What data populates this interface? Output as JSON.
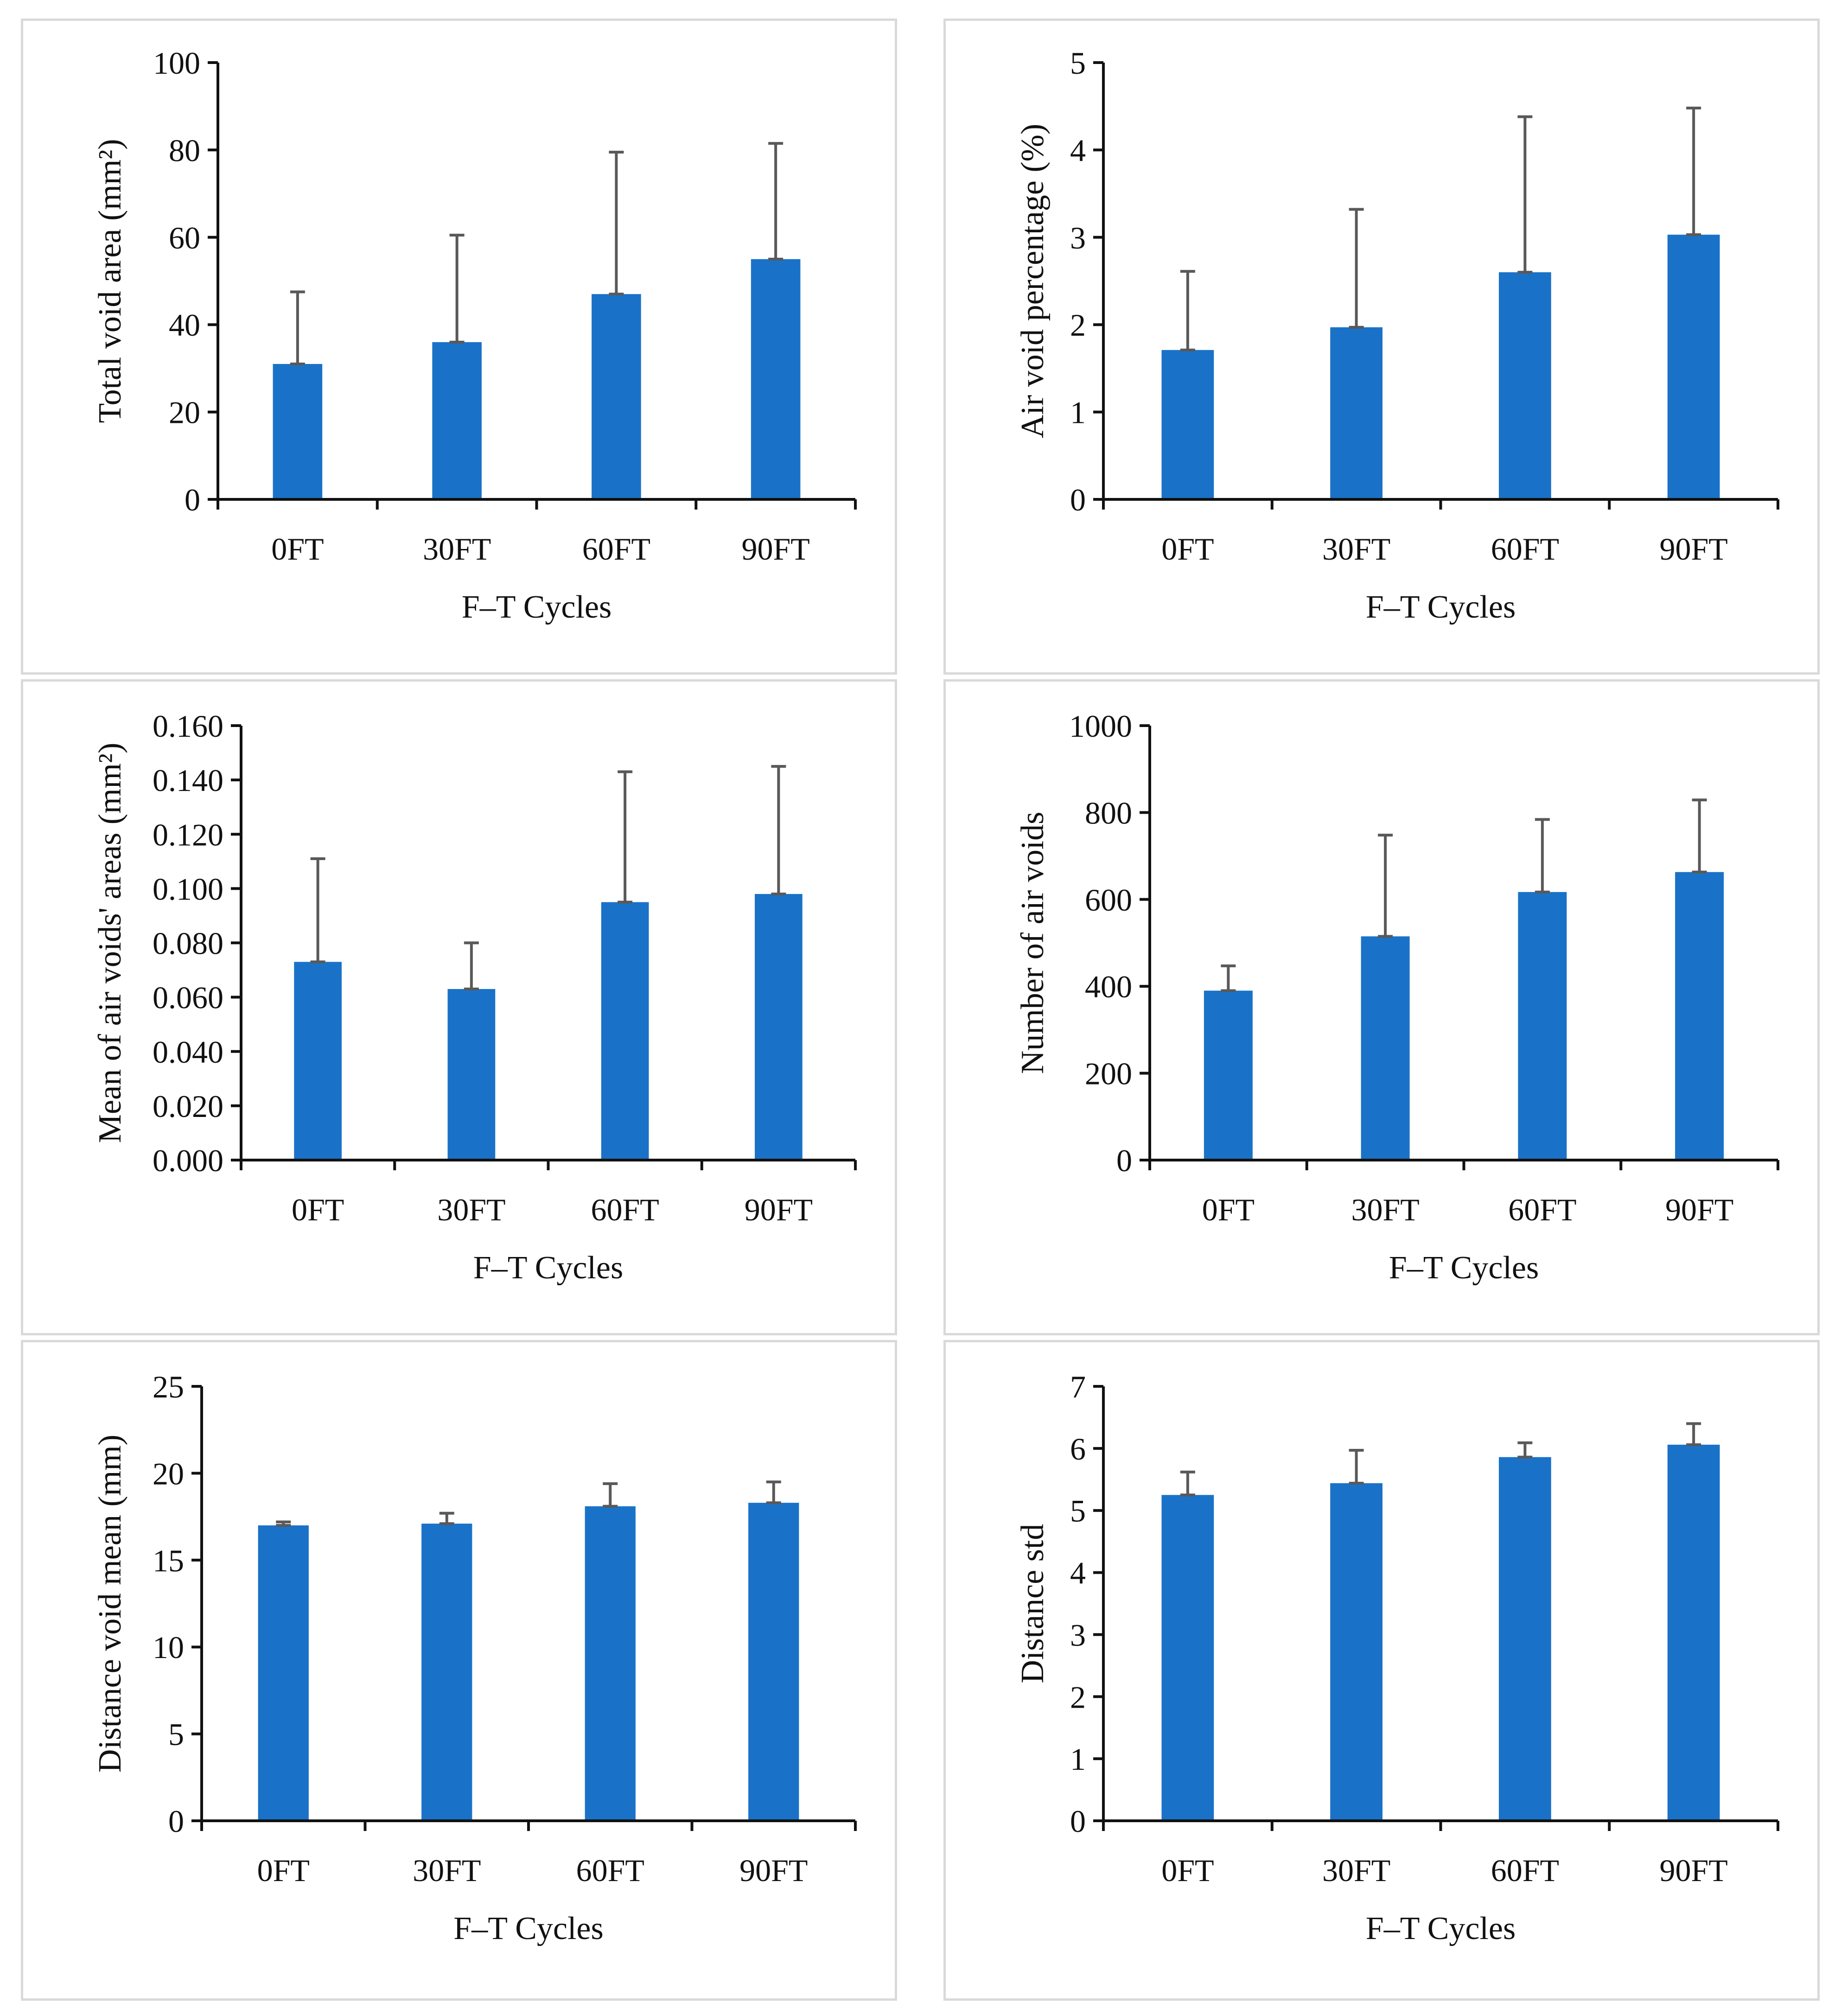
{
  "colors": {
    "bar": "#1a72c8",
    "error_bar": "#595959",
    "axis": "#111111",
    "panel_border": "#d9d9d9"
  },
  "chart_data": [
    {
      "type": "bar",
      "categories": [
        "0FT",
        "30FT",
        "60FT",
        "90FT"
      ],
      "values": [
        31,
        36,
        47,
        55
      ],
      "errors": [
        16.5,
        24.5,
        32.5,
        26.5
      ],
      "title": "",
      "xlabel": "F–T Cycles",
      "ylabel": "Total void area (mm²)",
      "ylim": [
        0,
        100
      ],
      "yticks": [
        "0",
        "20",
        "40",
        "60",
        "80",
        "100"
      ],
      "grid": false
    },
    {
      "type": "bar",
      "categories": [
        "0FT",
        "30FT",
        "60FT",
        "90FT"
      ],
      "values": [
        1.71,
        1.97,
        2.6,
        3.03
      ],
      "errors": [
        0.9,
        1.35,
        1.78,
        1.45
      ],
      "title": "",
      "xlabel": "F–T Cycles",
      "ylabel": "Air void percentage (%)",
      "ylim": [
        0,
        5
      ],
      "yticks": [
        "0",
        "1",
        "2",
        "3",
        "4",
        "5"
      ],
      "grid": false
    },
    {
      "type": "bar",
      "categories": [
        "0FT",
        "30FT",
        "60FT",
        "90FT"
      ],
      "values": [
        0.073,
        0.063,
        0.095,
        0.098
      ],
      "errors": [
        0.038,
        0.017,
        0.048,
        0.047
      ],
      "title": "",
      "xlabel": "F–T Cycles",
      "ylabel": "Mean of air voids' areas (mm²)",
      "ylim": [
        0,
        0.16
      ],
      "yticks": [
        "0.000",
        "0.020",
        "0.040",
        "0.060",
        "0.080",
        "0.100",
        "0.120",
        "0.140",
        "0.160"
      ],
      "grid": false
    },
    {
      "type": "bar",
      "categories": [
        "0FT",
        "30FT",
        "60FT",
        "90FT"
      ],
      "values": [
        390,
        515,
        617,
        663
      ],
      "errors": [
        57,
        233,
        167,
        166
      ],
      "title": "",
      "xlabel": "F–T Cycles",
      "ylabel": "Number of air voids",
      "ylim": [
        0,
        1000
      ],
      "yticks": [
        "0",
        "200",
        "400",
        "600",
        "800",
        "1000"
      ],
      "grid": false
    },
    {
      "type": "bar",
      "categories": [
        "0FT",
        "30FT",
        "60FT",
        "90FT"
      ],
      "values": [
        17.0,
        17.1,
        18.1,
        18.3
      ],
      "errors": [
        0.2,
        0.6,
        1.3,
        1.2
      ],
      "title": "",
      "xlabel": "F–T Cycles",
      "ylabel": "Distance void mean (mm)",
      "ylim": [
        0,
        25
      ],
      "yticks": [
        "0",
        "5",
        "10",
        "15",
        "20",
        "25"
      ],
      "grid": false
    },
    {
      "type": "bar",
      "categories": [
        "0FT",
        "30FT",
        "60FT",
        "90FT"
      ],
      "values": [
        5.25,
        5.44,
        5.86,
        6.06
      ],
      "errors": [
        0.37,
        0.53,
        0.23,
        0.34
      ],
      "title": "",
      "xlabel": "F–T Cycles",
      "ylabel": "Distance std",
      "ylim": [
        0,
        7
      ],
      "yticks": [
        "0",
        "1",
        "2",
        "3",
        "4",
        "5",
        "6",
        "7"
      ],
      "grid": false
    }
  ]
}
